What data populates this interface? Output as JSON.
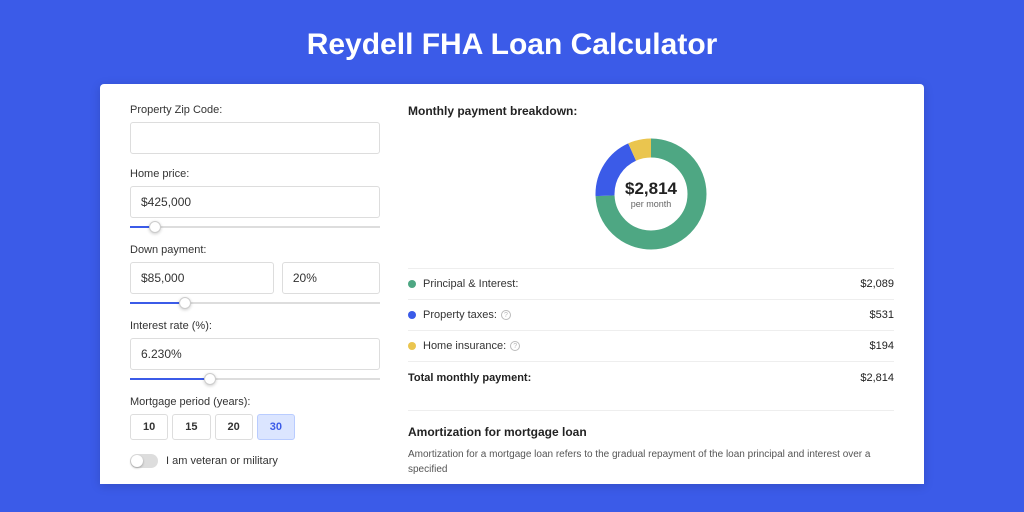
{
  "title": "Reydell FHA Loan Calculator",
  "form": {
    "zip": {
      "label": "Property Zip Code:",
      "value": ""
    },
    "home_price": {
      "label": "Home price:",
      "value": "$425,000",
      "slider_pct": 10
    },
    "down_payment": {
      "label": "Down payment:",
      "amount": "$85,000",
      "pct": "20%",
      "slider_pct": 22
    },
    "interest": {
      "label": "Interest rate (%):",
      "value": "6.230%",
      "slider_pct": 32
    },
    "period": {
      "label": "Mortgage period (years):",
      "options": [
        "10",
        "15",
        "20",
        "30"
      ],
      "active": 3
    },
    "veteran": {
      "label": "I am veteran or military",
      "on": false
    }
  },
  "breakdown": {
    "title": "Monthly payment breakdown:",
    "total_display": "$2,814",
    "sub": "per month",
    "items": [
      {
        "label": "Principal & Interest:",
        "value": "$2,089",
        "amount": 2089,
        "color": "#4ea783",
        "info": false
      },
      {
        "label": "Property taxes:",
        "value": "$531",
        "amount": 531,
        "color": "#3b5be8",
        "info": true
      },
      {
        "label": "Home insurance:",
        "value": "$194",
        "amount": 194,
        "color": "#eac54f",
        "info": true
      }
    ],
    "total_label": "Total monthly payment:",
    "total_value": "$2,814",
    "total_amount": 2814,
    "donut": {
      "stroke_width": 19,
      "radius": 46
    }
  },
  "amort": {
    "title": "Amortization for mortgage loan",
    "text": "Amortization for a mortgage loan refers to the gradual repayment of the loan principal and interest over a specified"
  },
  "colors": {
    "bg": "#3b5be8"
  }
}
